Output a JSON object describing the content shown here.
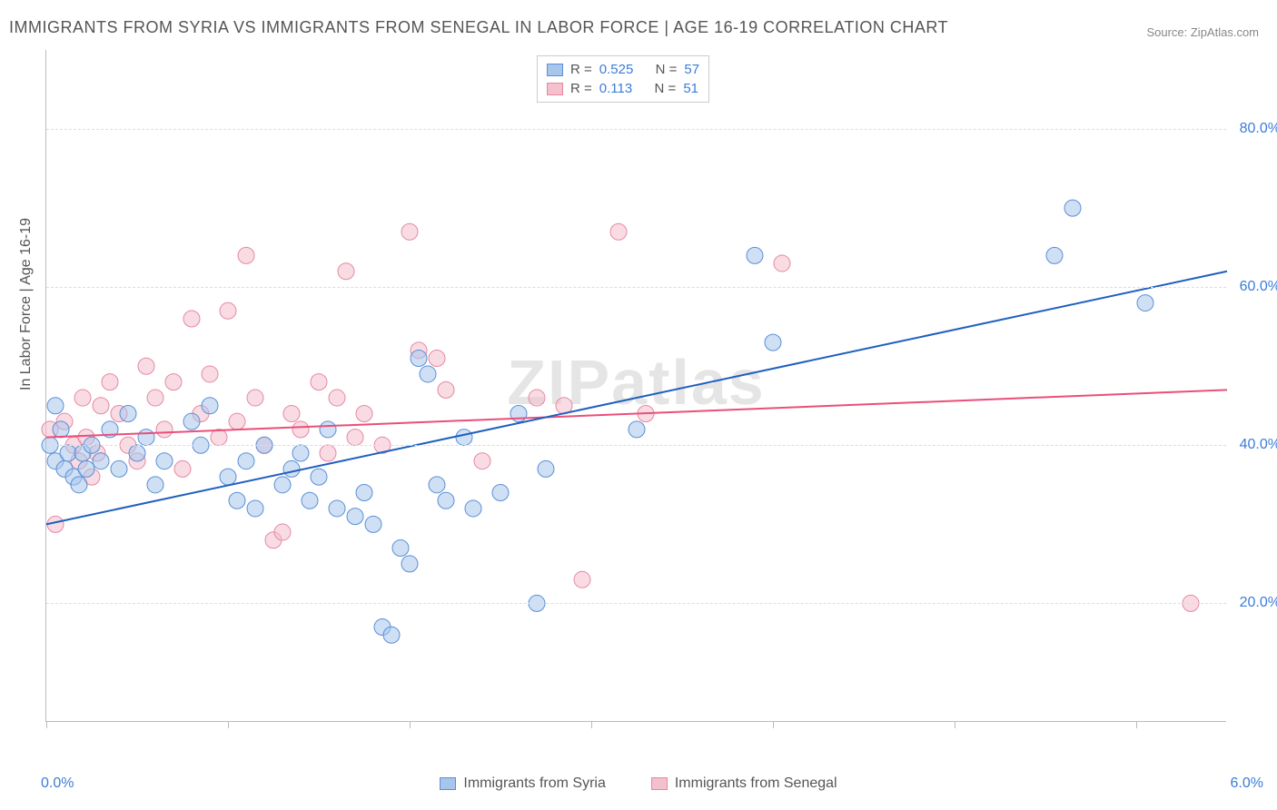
{
  "title": "IMMIGRANTS FROM SYRIA VS IMMIGRANTS FROM SENEGAL IN LABOR FORCE | AGE 16-19 CORRELATION CHART",
  "source": "Source: ZipAtlas.com",
  "watermark": "ZIPatlas",
  "ylabel": "In Labor Force | Age 16-19",
  "chart": {
    "type": "scatter",
    "xlim": [
      0,
      6.5
    ],
    "ylim": [
      5,
      90
    ],
    "xtick_labels": {
      "left": "0.0%",
      "right": "6.0%"
    },
    "xtick_positions": [
      0,
      1,
      2,
      3,
      4,
      5,
      6
    ],
    "ytick_positions": [
      20,
      40,
      60,
      80
    ],
    "ytick_labels": [
      "20.0%",
      "40.0%",
      "60.0%",
      "80.0%"
    ],
    "grid_color": "#dddddd",
    "background_color": "#ffffff",
    "axis_color": "#bbbbbb",
    "label_fontsize": 16,
    "title_fontsize": 18,
    "title_color": "#555555",
    "tick_label_color": "#3b7dd8",
    "point_radius": 9,
    "point_stroke_width": 1,
    "line_width": 2
  },
  "series": {
    "syria": {
      "label": "Immigrants from Syria",
      "fill": "#a8c6ec",
      "stroke": "#5a8fd6",
      "fill_opacity": 0.55,
      "R": "0.525",
      "N": "57",
      "trend": {
        "x1": 0,
        "y1": 30,
        "x2": 6.5,
        "y2": 62,
        "color": "#1f5fbf"
      },
      "points": [
        [
          0.02,
          40
        ],
        [
          0.05,
          38
        ],
        [
          0.08,
          42
        ],
        [
          0.1,
          37
        ],
        [
          0.12,
          39
        ],
        [
          0.05,
          45
        ],
        [
          0.15,
          36
        ],
        [
          0.18,
          35
        ],
        [
          0.2,
          39
        ],
        [
          0.22,
          37
        ],
        [
          0.25,
          40
        ],
        [
          0.3,
          38
        ],
        [
          0.35,
          42
        ],
        [
          0.4,
          37
        ],
        [
          0.45,
          44
        ],
        [
          0.5,
          39
        ],
        [
          0.55,
          41
        ],
        [
          0.6,
          35
        ],
        [
          0.65,
          38
        ],
        [
          0.8,
          43
        ],
        [
          0.85,
          40
        ],
        [
          0.9,
          45
        ],
        [
          1.0,
          36
        ],
        [
          1.05,
          33
        ],
        [
          1.1,
          38
        ],
        [
          1.15,
          32
        ],
        [
          1.2,
          40
        ],
        [
          1.3,
          35
        ],
        [
          1.35,
          37
        ],
        [
          1.4,
          39
        ],
        [
          1.45,
          33
        ],
        [
          1.5,
          36
        ],
        [
          1.55,
          42
        ],
        [
          1.6,
          32
        ],
        [
          1.7,
          31
        ],
        [
          1.75,
          34
        ],
        [
          1.8,
          30
        ],
        [
          1.85,
          17
        ],
        [
          1.9,
          16
        ],
        [
          1.95,
          27
        ],
        [
          2.0,
          25
        ],
        [
          2.05,
          51
        ],
        [
          2.1,
          49
        ],
        [
          2.15,
          35
        ],
        [
          2.2,
          33
        ],
        [
          2.3,
          41
        ],
        [
          2.35,
          32
        ],
        [
          2.5,
          34
        ],
        [
          2.6,
          44
        ],
        [
          2.7,
          20
        ],
        [
          2.75,
          37
        ],
        [
          3.25,
          42
        ],
        [
          3.9,
          64
        ],
        [
          4.0,
          53
        ],
        [
          5.55,
          64
        ],
        [
          5.65,
          70
        ],
        [
          6.05,
          58
        ]
      ]
    },
    "senegal": {
      "label": "Immigrants from Senegal",
      "fill": "#f4c0cc",
      "stroke": "#e588a3",
      "fill_opacity": 0.55,
      "R": "0.113",
      "N": "51",
      "trend": {
        "x1": 0,
        "y1": 41,
        "x2": 6.5,
        "y2": 47,
        "color": "#e94f7a"
      },
      "points": [
        [
          0.02,
          42
        ],
        [
          0.05,
          30
        ],
        [
          0.1,
          43
        ],
        [
          0.15,
          40
        ],
        [
          0.18,
          38
        ],
        [
          0.2,
          46
        ],
        [
          0.22,
          41
        ],
        [
          0.25,
          36
        ],
        [
          0.28,
          39
        ],
        [
          0.3,
          45
        ],
        [
          0.35,
          48
        ],
        [
          0.4,
          44
        ],
        [
          0.45,
          40
        ],
        [
          0.5,
          38
        ],
        [
          0.55,
          50
        ],
        [
          0.6,
          46
        ],
        [
          0.65,
          42
        ],
        [
          0.7,
          48
        ],
        [
          0.75,
          37
        ],
        [
          0.8,
          56
        ],
        [
          0.85,
          44
        ],
        [
          0.9,
          49
        ],
        [
          0.95,
          41
        ],
        [
          1.0,
          57
        ],
        [
          1.05,
          43
        ],
        [
          1.1,
          64
        ],
        [
          1.15,
          46
        ],
        [
          1.2,
          40
        ],
        [
          1.25,
          28
        ],
        [
          1.3,
          29
        ],
        [
          1.35,
          44
        ],
        [
          1.4,
          42
        ],
        [
          1.5,
          48
        ],
        [
          1.55,
          39
        ],
        [
          1.6,
          46
        ],
        [
          1.65,
          62
        ],
        [
          1.7,
          41
        ],
        [
          1.75,
          44
        ],
        [
          1.85,
          40
        ],
        [
          2.0,
          67
        ],
        [
          2.05,
          52
        ],
        [
          2.15,
          51
        ],
        [
          2.2,
          47
        ],
        [
          2.4,
          38
        ],
        [
          2.7,
          46
        ],
        [
          2.85,
          45
        ],
        [
          2.95,
          23
        ],
        [
          3.15,
          67
        ],
        [
          3.3,
          44
        ],
        [
          4.05,
          63
        ],
        [
          6.3,
          20
        ]
      ]
    }
  },
  "legend_top": [
    {
      "swatch": "syria",
      "r_label": "R =",
      "r_val": "0.525",
      "n_label": "N =",
      "n_val": "57"
    },
    {
      "swatch": "senegal",
      "r_label": "R =",
      "r_val": "0.113",
      "n_label": "N =",
      "n_val": "51"
    }
  ]
}
